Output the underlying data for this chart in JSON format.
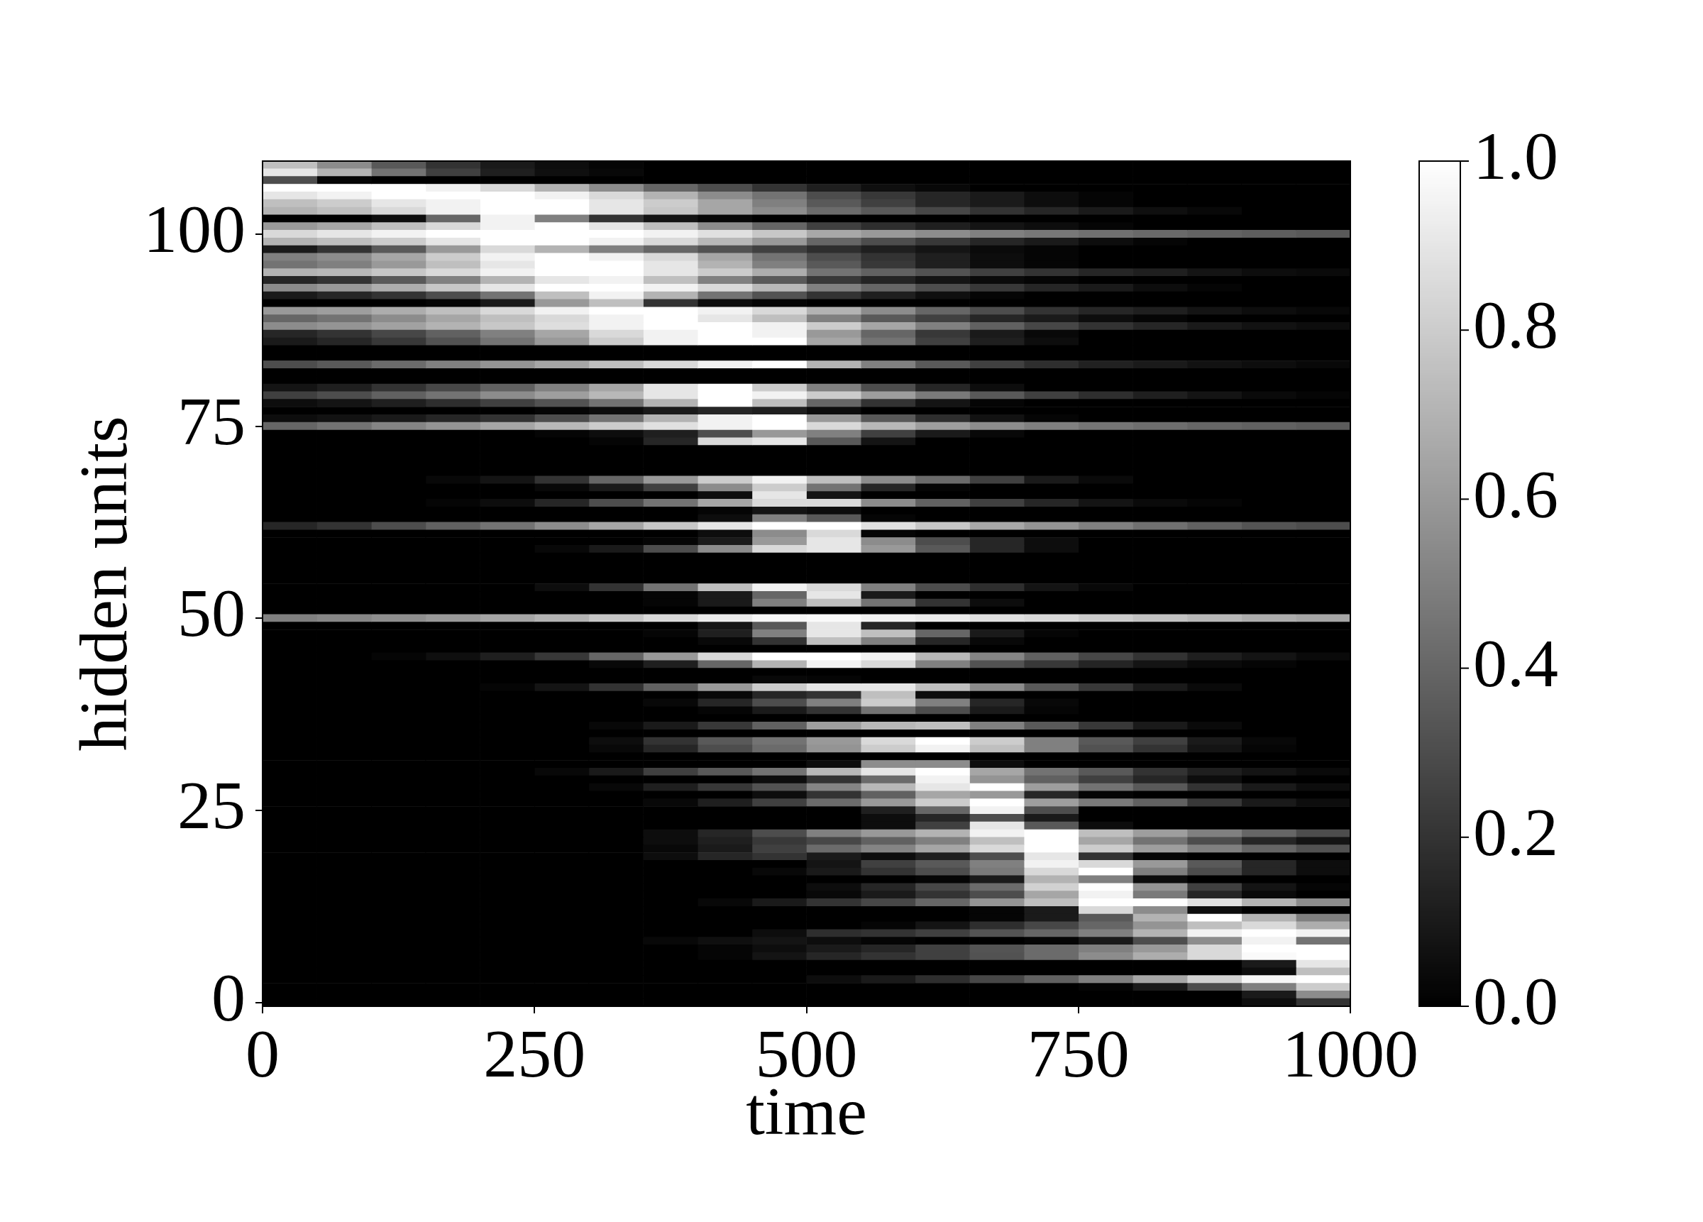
{
  "chart_data": {
    "type": "heatmap",
    "xlabel": "time",
    "ylabel": "hidden units",
    "x": [
      25,
      75,
      125,
      175,
      225,
      275,
      325,
      375,
      425,
      475,
      525,
      575,
      625,
      675,
      725,
      775,
      825,
      875,
      925,
      975
    ],
    "y_categories": [
      null,
      null,
      null,
      null,
      null,
      null,
      null,
      null,
      null,
      "100",
      null,
      null,
      null,
      null,
      null,
      null,
      null,
      null,
      null,
      null,
      null,
      null,
      null,
      null,
      null,
      null,
      null,
      null,
      null,
      null,
      null,
      null,
      null,
      null,
      "75",
      null,
      null,
      null,
      null,
      null,
      null,
      null,
      null,
      null,
      null,
      null,
      null,
      null,
      null,
      null,
      null,
      null,
      null,
      null,
      null,
      null,
      null,
      null,
      null,
      "50",
      null,
      null,
      null,
      null,
      null,
      null,
      null,
      null,
      null,
      null,
      null,
      null,
      null,
      null,
      null,
      null,
      null,
      null,
      null,
      null,
      null,
      null,
      null,
      null,
      "25",
      null,
      null,
      null,
      null,
      null,
      null,
      null,
      null,
      null,
      null,
      null,
      null,
      null,
      null,
      null,
      null,
      null,
      null,
      null,
      null,
      null,
      null,
      null,
      null,
      "0"
    ],
    "cells": [
      [
        0.75,
        0.55,
        0.35,
        0.2,
        0.1,
        0.05,
        0.02,
        0,
        0,
        0,
        0,
        0,
        0,
        0,
        0,
        0,
        0,
        0,
        0,
        0
      ],
      [
        0.9,
        0.7,
        0.45,
        0.25,
        0.12,
        0.06,
        0.03,
        0,
        0,
        0,
        0,
        0,
        0,
        0,
        0,
        0,
        0,
        0,
        0,
        0
      ],
      [
        0.3,
        0.02,
        0,
        0,
        0,
        0,
        0,
        0,
        0,
        0,
        0,
        0,
        0,
        0,
        0,
        0,
        0,
        0,
        0,
        0
      ],
      [
        1,
        1,
        1,
        0.95,
        0.85,
        0.7,
        0.55,
        0.4,
        0.3,
        0.2,
        0.12,
        0.06,
        0.03,
        0,
        0,
        0,
        0,
        0,
        0,
        0
      ],
      [
        0.9,
        0.95,
        1,
        1,
        1,
        0.95,
        0.85,
        0.7,
        0.55,
        0.45,
        0.3,
        0.22,
        0.15,
        0.1,
        0.05,
        0.02,
        0,
        0,
        0,
        0
      ],
      [
        0.75,
        0.8,
        0.9,
        0.95,
        1,
        1,
        0.9,
        0.8,
        0.65,
        0.5,
        0.35,
        0.25,
        0.15,
        0.1,
        0.05,
        0.02,
        0,
        0,
        0,
        0
      ],
      [
        0.7,
        0.75,
        0.85,
        0.95,
        1,
        1,
        0.9,
        0.78,
        0.65,
        0.55,
        0.42,
        0.35,
        0.28,
        0.2,
        0.15,
        0.1,
        0.06,
        0.03,
        0,
        0
      ],
      [
        0,
        0,
        0.05,
        0.4,
        0.95,
        0.5,
        0.2,
        0.08,
        0.03,
        0,
        0,
        0,
        0,
        0,
        0,
        0,
        0,
        0,
        0,
        0
      ],
      [
        0.6,
        0.65,
        0.75,
        0.85,
        0.95,
        1,
        0.9,
        0.75,
        0.55,
        0.4,
        0.25,
        0.18,
        0.12,
        0.08,
        0.05,
        0.02,
        0,
        0,
        0,
        0
      ],
      [
        0.85,
        0.9,
        0.95,
        1,
        1,
        1,
        1,
        0.95,
        0.88,
        0.78,
        0.66,
        0.6,
        0.55,
        0.5,
        0.47,
        0.44,
        0.41,
        0.39,
        0.37,
        0.35
      ],
      [
        0.7,
        0.75,
        0.8,
        0.9,
        1,
        1,
        0.95,
        0.85,
        0.72,
        0.6,
        0.4,
        0.3,
        0.22,
        0.15,
        0.1,
        0.05,
        0.02,
        0,
        0,
        0
      ],
      [
        0.1,
        0.2,
        0.35,
        0.6,
        0.85,
        0.7,
        0.5,
        0.4,
        0.32,
        0.25,
        0.18,
        0.12,
        0.08,
        0.04,
        0.02,
        0,
        0,
        0,
        0,
        0
      ],
      [
        0.5,
        0.55,
        0.65,
        0.8,
        0.95,
        1,
        0.95,
        0.85,
        0.65,
        0.45,
        0.3,
        0.2,
        0.12,
        0.05,
        0.02,
        0,
        0,
        0,
        0,
        0
      ],
      [
        0.45,
        0.5,
        0.6,
        0.75,
        0.9,
        1,
        1,
        0.9,
        0.7,
        0.5,
        0.35,
        0.22,
        0.12,
        0.05,
        0.02,
        0,
        0,
        0,
        0,
        0
      ],
      [
        0.7,
        0.72,
        0.78,
        0.85,
        0.95,
        1,
        1,
        0.9,
        0.8,
        0.68,
        0.45,
        0.38,
        0.32,
        0.25,
        0.2,
        0.15,
        0.12,
        0.08,
        0.05,
        0.04
      ],
      [
        0.15,
        0.2,
        0.35,
        0.5,
        0.7,
        0.9,
        0.95,
        0.75,
        0.5,
        0.35,
        0.22,
        0.14,
        0.08,
        0.04,
        0.02,
        0,
        0,
        0,
        0,
        0
      ],
      [
        0.55,
        0.6,
        0.68,
        0.78,
        0.9,
        1,
        1,
        0.95,
        0.85,
        0.72,
        0.5,
        0.4,
        0.3,
        0.22,
        0.15,
        0.1,
        0.05,
        0.02,
        0,
        0
      ],
      [
        0.1,
        0.15,
        0.2,
        0.3,
        0.45,
        0.75,
        0.95,
        0.7,
        0.45,
        0.32,
        0.2,
        0.12,
        0.06,
        0.02,
        0,
        0,
        0,
        0,
        0,
        0
      ],
      [
        0,
        0,
        0,
        0.02,
        0.1,
        0.6,
        0.75,
        0.2,
        0.05,
        0.02,
        0,
        0,
        0,
        0,
        0,
        0,
        0,
        0,
        0,
        0
      ],
      [
        0.6,
        0.62,
        0.68,
        0.75,
        0.85,
        0.95,
        1,
        1,
        0.95,
        0.85,
        0.7,
        0.55,
        0.4,
        0.3,
        0.2,
        0.15,
        0.12,
        0.08,
        0.05,
        0.03
      ],
      [
        0.4,
        0.45,
        0.55,
        0.65,
        0.75,
        0.85,
        0.95,
        1,
        0.9,
        0.75,
        0.5,
        0.35,
        0.25,
        0.15,
        0.1,
        0.05,
        0.02,
        0,
        0,
        0
      ],
      [
        0.55,
        0.58,
        0.63,
        0.7,
        0.78,
        0.87,
        0.95,
        1,
        1,
        0.95,
        0.8,
        0.65,
        0.5,
        0.38,
        0.28,
        0.2,
        0.15,
        0.1,
        0.07,
        0.05
      ],
      [
        0.15,
        0.2,
        0.28,
        0.38,
        0.5,
        0.65,
        0.85,
        0.95,
        1,
        0.95,
        0.6,
        0.4,
        0.22,
        0.1,
        0.03,
        0,
        0,
        0,
        0,
        0
      ],
      [
        0.1,
        0.15,
        0.22,
        0.32,
        0.45,
        0.6,
        0.8,
        0.95,
        1,
        1,
        0.65,
        0.45,
        0.25,
        0.12,
        0.05,
        0,
        0,
        0,
        0,
        0
      ],
      [
        0,
        0,
        0,
        0,
        0,
        0,
        0,
        0,
        0,
        0,
        0,
        0,
        0,
        0,
        0,
        0,
        0,
        0,
        0,
        0
      ],
      [
        0,
        0,
        0,
        0,
        0,
        0,
        0,
        0,
        0,
        0,
        0,
        0,
        0,
        0,
        0,
        0,
        0,
        0,
        0,
        0
      ],
      [
        0.3,
        0.35,
        0.42,
        0.5,
        0.58,
        0.65,
        0.75,
        0.85,
        0.95,
        1,
        0.7,
        0.5,
        0.35,
        0.25,
        0.18,
        0.13,
        0.1,
        0.07,
        0.05,
        0.03
      ],
      [
        0,
        0,
        0,
        0,
        0,
        0,
        0,
        0,
        0,
        0,
        0,
        0,
        0,
        0,
        0,
        0,
        0,
        0,
        0,
        0
      ],
      [
        0,
        0,
        0,
        0,
        0,
        0,
        0,
        0,
        0,
        0,
        0,
        0,
        0,
        0,
        0,
        0,
        0,
        0,
        0,
        0
      ],
      [
        0.08,
        0.12,
        0.2,
        0.28,
        0.38,
        0.5,
        0.65,
        0.9,
        1,
        0.8,
        0.5,
        0.3,
        0.15,
        0.05,
        0,
        0,
        0,
        0,
        0,
        0
      ],
      [
        0.25,
        0.3,
        0.38,
        0.45,
        0.55,
        0.62,
        0.72,
        0.9,
        1,
        0.95,
        0.8,
        0.62,
        0.48,
        0.35,
        0.25,
        0.18,
        0.12,
        0.08,
        0.04,
        0.02
      ],
      [
        0.05,
        0.08,
        0.12,
        0.18,
        0.25,
        0.32,
        0.45,
        0.7,
        1,
        0.75,
        0.4,
        0.2,
        0.08,
        0.02,
        0,
        0,
        0,
        0,
        0,
        0
      ],
      [
        0,
        0,
        0,
        0,
        0,
        0.02,
        0.05,
        0.1,
        0.15,
        0.12,
        0.05,
        0,
        0,
        0,
        0,
        0,
        0,
        0,
        0,
        0
      ],
      [
        0.05,
        0.07,
        0.1,
        0.15,
        0.2,
        0.3,
        0.45,
        0.7,
        0.95,
        1,
        0.6,
        0.35,
        0.18,
        0.07,
        0.02,
        0,
        0,
        0,
        0,
        0
      ],
      [
        0.4,
        0.45,
        0.52,
        0.58,
        0.65,
        0.72,
        0.8,
        0.88,
        0.95,
        1,
        0.85,
        0.72,
        0.62,
        0.55,
        0.5,
        0.46,
        0.43,
        0.4,
        0.38,
        0.36
      ],
      [
        0,
        0,
        0,
        0,
        0,
        0.02,
        0.05,
        0.12,
        0.3,
        0.6,
        0.5,
        0.25,
        0.1,
        0.03,
        0,
        0,
        0,
        0,
        0,
        0
      ],
      [
        0,
        0,
        0,
        0,
        0,
        0,
        0.02,
        0.15,
        0.85,
        0.9,
        0.35,
        0.08,
        0,
        0,
        0,
        0,
        0,
        0,
        0,
        0
      ],
      [
        0,
        0,
        0,
        0,
        0,
        0,
        0,
        0,
        0,
        0,
        0,
        0,
        0,
        0,
        0,
        0,
        0,
        0,
        0,
        0
      ],
      [
        0,
        0,
        0,
        0,
        0,
        0,
        0,
        0,
        0,
        0,
        0,
        0,
        0,
        0,
        0,
        0,
        0,
        0,
        0,
        0
      ],
      [
        0,
        0,
        0,
        0,
        0,
        0,
        0,
        0,
        0,
        0,
        0,
        0,
        0,
        0,
        0,
        0,
        0,
        0,
        0,
        0
      ],
      [
        0,
        0,
        0,
        0,
        0,
        0,
        0,
        0,
        0,
        0,
        0,
        0,
        0,
        0,
        0,
        0,
        0,
        0,
        0,
        0
      ],
      [
        0,
        0,
        0,
        0.03,
        0.08,
        0.2,
        0.4,
        0.6,
        0.8,
        0.95,
        0.75,
        0.55,
        0.42,
        0.25,
        0.1,
        0.04,
        0,
        0,
        0,
        0
      ],
      [
        0,
        0,
        0,
        0,
        0,
        0.03,
        0.1,
        0.25,
        0.55,
        0.8,
        0.45,
        0.15,
        0.02,
        0,
        0,
        0,
        0,
        0,
        0,
        0
      ],
      [
        0,
        0,
        0,
        0,
        0,
        0,
        0,
        0,
        0.05,
        0.9,
        0.08,
        0,
        0,
        0,
        0,
        0,
        0,
        0,
        0,
        0
      ],
      [
        0,
        0,
        0,
        0.02,
        0.05,
        0.15,
        0.3,
        0.45,
        0.65,
        0.85,
        0.85,
        0.55,
        0.38,
        0.25,
        0.15,
        0.08,
        0.04,
        0.02,
        0,
        0
      ],
      [
        0,
        0,
        0,
        0,
        0,
        0,
        0,
        0,
        0.02,
        0.08,
        0.05,
        0,
        0,
        0,
        0,
        0,
        0,
        0,
        0,
        0
      ],
      [
        0,
        0,
        0,
        0,
        0,
        0,
        0,
        0,
        0.05,
        0.5,
        0.35,
        0.02,
        0,
        0,
        0,
        0,
        0,
        0,
        0,
        0
      ],
      [
        0.15,
        0.2,
        0.3,
        0.38,
        0.45,
        0.55,
        0.65,
        0.78,
        0.9,
        1,
        1,
        0.88,
        0.78,
        0.66,
        0.58,
        0.5,
        0.44,
        0.38,
        0.33,
        0.3
      ],
      [
        0,
        0,
        0,
        0,
        0,
        0,
        0,
        0,
        0.05,
        0.55,
        0.85,
        0.02,
        0,
        0,
        0,
        0,
        0,
        0,
        0,
        0
      ],
      [
        0,
        0,
        0,
        0,
        0,
        0,
        0,
        0.02,
        0.1,
        0.6,
        0.9,
        0.55,
        0.3,
        0.15,
        0.05,
        0,
        0,
        0,
        0,
        0
      ],
      [
        0,
        0,
        0,
        0,
        0,
        0.03,
        0.1,
        0.3,
        0.55,
        0.85,
        0.9,
        0.6,
        0.35,
        0.15,
        0.05,
        0,
        0,
        0,
        0,
        0
      ],
      [
        0,
        0,
        0,
        0,
        0,
        0,
        0,
        0,
        0,
        0,
        0,
        0,
        0,
        0,
        0,
        0,
        0,
        0,
        0,
        0
      ],
      [
        0,
        0,
        0,
        0,
        0,
        0,
        0,
        0,
        0,
        0,
        0,
        0,
        0,
        0,
        0,
        0,
        0,
        0,
        0,
        0
      ],
      [
        0,
        0,
        0,
        0,
        0,
        0,
        0,
        0,
        0,
        0,
        0,
        0,
        0,
        0,
        0,
        0,
        0,
        0,
        0,
        0
      ],
      [
        0,
        0,
        0,
        0,
        0,
        0,
        0,
        0,
        0,
        0,
        0,
        0,
        0,
        0,
        0,
        0,
        0,
        0,
        0,
        0
      ],
      [
        0,
        0,
        0,
        0,
        0,
        0.05,
        0.2,
        0.45,
        0.75,
        0.95,
        0.85,
        0.5,
        0.3,
        0.18,
        0.08,
        0.03,
        0,
        0,
        0,
        0
      ],
      [
        0,
        0,
        0,
        0,
        0,
        0,
        0,
        0.02,
        0.1,
        0.4,
        0.9,
        0.1,
        0,
        0,
        0,
        0,
        0,
        0,
        0,
        0
      ],
      [
        0,
        0,
        0,
        0,
        0,
        0,
        0,
        0.02,
        0.1,
        0.5,
        0.75,
        0.45,
        0.2,
        0.05,
        0,
        0,
        0,
        0,
        0,
        0
      ],
      [
        0,
        0,
        0,
        0,
        0,
        0,
        0,
        0,
        0,
        0,
        0,
        0,
        0,
        0,
        0,
        0,
        0,
        0,
        0,
        0
      ],
      [
        0.5,
        0.53,
        0.56,
        0.6,
        0.65,
        0.7,
        0.78,
        0.85,
        0.92,
        0.97,
        0.98,
        0.95,
        0.92,
        0.88,
        0.85,
        0.8,
        0.76,
        0.72,
        0.68,
        0.65
      ],
      [
        0,
        0,
        0,
        0,
        0,
        0,
        0,
        0,
        0.08,
        0.35,
        0.9,
        0.15,
        0,
        0,
        0,
        0,
        0,
        0,
        0,
        0
      ],
      [
        0,
        0,
        0,
        0,
        0,
        0,
        0,
        0.02,
        0.12,
        0.5,
        0.9,
        0.75,
        0.4,
        0.1,
        0.02,
        0,
        0,
        0,
        0,
        0
      ],
      [
        0,
        0,
        0,
        0,
        0,
        0,
        0,
        0,
        0.03,
        0.2,
        0.75,
        0.5,
        0.15,
        0.03,
        0,
        0,
        0,
        0,
        0,
        0
      ],
      [
        0,
        0,
        0,
        0,
        0,
        0,
        0,
        0,
        0,
        0,
        0,
        0,
        0,
        0,
        0,
        0,
        0,
        0,
        0,
        0
      ],
      [
        0,
        0,
        0.02,
        0.06,
        0.12,
        0.22,
        0.4,
        0.6,
        0.85,
        1,
        1,
        0.95,
        0.72,
        0.52,
        0.38,
        0.28,
        0.2,
        0.12,
        0.08,
        0.04
      ],
      [
        0,
        0,
        0,
        0,
        0,
        0,
        0.03,
        0.12,
        0.4,
        0.7,
        0.95,
        0.85,
        0.5,
        0.32,
        0.22,
        0.14,
        0.08,
        0.04,
        0.02,
        0
      ],
      [
        0,
        0,
        0,
        0,
        0,
        0,
        0,
        0,
        0,
        0,
        0,
        0,
        0,
        0,
        0,
        0,
        0,
        0,
        0,
        0
      ],
      [
        0,
        0,
        0,
        0,
        0,
        0,
        0,
        0,
        0,
        0.03,
        0.02,
        0,
        0,
        0,
        0,
        0,
        0,
        0,
        0,
        0
      ],
      [
        0,
        0,
        0,
        0,
        0.02,
        0.08,
        0.2,
        0.38,
        0.6,
        0.8,
        0.9,
        0.9,
        0.75,
        0.55,
        0.35,
        0.22,
        0.1,
        0.04,
        0,
        0
      ],
      [
        0,
        0,
        0,
        0,
        0,
        0,
        0,
        0,
        0.03,
        0.15,
        0.2,
        0.75,
        0.05,
        0,
        0,
        0,
        0,
        0,
        0,
        0
      ],
      [
        0,
        0,
        0,
        0,
        0,
        0,
        0,
        0.03,
        0.15,
        0.3,
        0.5,
        0.8,
        0.5,
        0.15,
        0.03,
        0,
        0,
        0,
        0,
        0
      ],
      [
        0,
        0,
        0,
        0,
        0,
        0,
        0,
        0,
        0.02,
        0.1,
        0.2,
        0.45,
        0.3,
        0.1,
        0.02,
        0,
        0,
        0,
        0,
        0
      ],
      [
        0,
        0,
        0,
        0,
        0,
        0,
        0,
        0,
        0,
        0,
        0,
        0,
        0,
        0,
        0,
        0,
        0,
        0,
        0,
        0
      ],
      [
        0,
        0,
        0,
        0,
        0,
        0,
        0.03,
        0.1,
        0.22,
        0.38,
        0.62,
        0.72,
        0.75,
        0.5,
        0.35,
        0.22,
        0.1,
        0.04,
        0,
        0
      ],
      [
        0,
        0,
        0,
        0,
        0,
        0,
        0,
        0,
        0,
        0,
        0,
        0,
        0,
        0,
        0,
        0,
        0,
        0,
        0,
        0
      ],
      [
        0,
        0,
        0,
        0,
        0,
        0,
        0.05,
        0.2,
        0.35,
        0.45,
        0.6,
        0.85,
        1,
        0.8,
        0.5,
        0.35,
        0.25,
        0.1,
        0.03,
        0
      ],
      [
        0,
        0,
        0,
        0,
        0,
        0,
        0.03,
        0.15,
        0.3,
        0.42,
        0.58,
        0.8,
        0.95,
        0.75,
        0.5,
        0.32,
        0.2,
        0.08,
        0.02,
        0
      ],
      [
        0,
        0,
        0,
        0,
        0,
        0,
        0,
        0,
        0,
        0,
        0,
        0,
        0,
        0,
        0,
        0,
        0,
        0,
        0,
        0
      ],
      [
        0,
        0,
        0,
        0,
        0,
        0,
        0,
        0,
        0,
        0,
        0.05,
        0.55,
        0.55,
        0.05,
        0,
        0,
        0,
        0,
        0,
        0
      ],
      [
        0,
        0,
        0,
        0,
        0,
        0.03,
        0.1,
        0.25,
        0.35,
        0.45,
        0.72,
        0.9,
        1,
        0.65,
        0.45,
        0.35,
        0.2,
        0.12,
        0.08,
        0.04
      ],
      [
        0,
        0,
        0,
        0,
        0,
        0,
        0,
        0,
        0,
        0.05,
        0.2,
        0.42,
        0.95,
        0.58,
        0.38,
        0.25,
        0.15,
        0.05,
        0,
        0
      ],
      [
        0,
        0,
        0,
        0,
        0,
        0,
        0.03,
        0.12,
        0.22,
        0.32,
        0.52,
        0.72,
        0.9,
        1,
        0.62,
        0.45,
        0.35,
        0.2,
        0.1,
        0.05
      ],
      [
        0,
        0,
        0,
        0,
        0,
        0,
        0,
        0,
        0,
        0.05,
        0.2,
        0.38,
        0.65,
        0.6,
        0.15,
        0.02,
        0,
        0,
        0,
        0
      ],
      [
        0,
        0,
        0,
        0,
        0,
        0,
        0,
        0.03,
        0.12,
        0.25,
        0.42,
        0.6,
        0.8,
        1,
        0.62,
        0.48,
        0.38,
        0.22,
        0.1,
        0.05
      ],
      [
        0,
        0,
        0,
        0,
        0,
        0,
        0,
        0,
        0,
        0,
        0,
        0.12,
        0.4,
        0.95,
        0.3,
        0,
        0,
        0,
        0,
        0
      ],
      [
        0,
        0,
        0,
        0,
        0,
        0,
        0,
        0,
        0,
        0,
        0,
        0.05,
        0.15,
        0.3,
        0.1,
        0,
        0,
        0,
        0,
        0
      ],
      [
        0,
        0,
        0,
        0,
        0,
        0,
        0,
        0,
        0,
        0,
        0,
        0.05,
        0.25,
        0.9,
        0.35,
        0.05,
        0,
        0,
        0,
        0
      ],
      [
        0,
        0,
        0,
        0,
        0,
        0,
        0,
        0.05,
        0.15,
        0.3,
        0.5,
        0.6,
        0.7,
        0.95,
        1,
        0.75,
        0.62,
        0.5,
        0.4,
        0.3
      ],
      [
        0,
        0,
        0,
        0,
        0,
        0,
        0,
        0.05,
        0.12,
        0.22,
        0.28,
        0.38,
        0.5,
        0.75,
        1,
        0.65,
        0.45,
        0.3,
        0.15,
        0.08
      ],
      [
        0,
        0,
        0,
        0,
        0,
        0,
        0,
        0.03,
        0.1,
        0.25,
        0.42,
        0.52,
        0.65,
        0.85,
        1,
        0.8,
        0.62,
        0.5,
        0.4,
        0.32
      ],
      [
        0,
        0,
        0,
        0,
        0,
        0,
        0,
        0.05,
        0.15,
        0.2,
        0.1,
        0.05,
        0.12,
        0.3,
        0.9,
        0.2,
        0.02,
        0,
        0,
        0
      ],
      [
        0,
        0,
        0,
        0,
        0,
        0,
        0,
        0,
        0,
        0,
        0.08,
        0.25,
        0.35,
        0.5,
        0.95,
        0.85,
        0.6,
        0.35,
        0.15,
        0.05
      ],
      [
        0,
        0,
        0,
        0,
        0,
        0,
        0,
        0,
        0,
        0.03,
        0.1,
        0.2,
        0.3,
        0.48,
        0.85,
        1,
        0.5,
        0.3,
        0.15,
        0.05
      ],
      [
        0,
        0,
        0,
        0,
        0,
        0,
        0,
        0,
        0,
        0,
        0,
        0,
        0.02,
        0.1,
        0.7,
        0.5,
        0.05,
        0,
        0,
        0
      ],
      [
        0,
        0,
        0,
        0,
        0,
        0,
        0,
        0,
        0,
        0,
        0.05,
        0.15,
        0.28,
        0.42,
        0.82,
        1,
        0.58,
        0.25,
        0.08,
        0.02
      ],
      [
        0,
        0,
        0,
        0,
        0,
        0,
        0,
        0,
        0,
        0,
        0.03,
        0.1,
        0.2,
        0.3,
        0.65,
        0.95,
        0.48,
        0.15,
        0.04,
        0
      ],
      [
        0,
        0,
        0,
        0,
        0,
        0,
        0,
        0,
        0.03,
        0.1,
        0.2,
        0.28,
        0.4,
        0.58,
        0.75,
        1,
        1,
        0.88,
        0.7,
        0.55
      ],
      [
        0,
        0,
        0,
        0,
        0,
        0,
        0,
        0,
        0,
        0,
        0,
        0,
        0,
        0.02,
        0.1,
        0.85,
        0.55,
        0.05,
        0,
        0
      ],
      [
        0,
        0,
        0,
        0,
        0,
        0,
        0,
        0,
        0,
        0,
        0,
        0,
        0,
        0.02,
        0.1,
        0.35,
        0.7,
        1,
        0.7,
        0.5
      ],
      [
        0,
        0,
        0,
        0,
        0,
        0,
        0,
        0,
        0,
        0,
        0,
        0.02,
        0.08,
        0.18,
        0.28,
        0.4,
        0.58,
        0.75,
        0.85,
        0.68
      ],
      [
        0,
        0,
        0,
        0,
        0,
        0,
        0,
        0,
        0,
        0.05,
        0.18,
        0.2,
        0.25,
        0.33,
        0.4,
        0.5,
        0.7,
        0.95,
        1,
        0.95
      ],
      [
        0,
        0,
        0,
        0,
        0,
        0,
        0,
        0.03,
        0.06,
        0.08,
        0.05,
        0.02,
        0,
        0,
        0.02,
        0.1,
        0.3,
        0.55,
        0.95,
        0.45
      ],
      [
        0,
        0,
        0,
        0,
        0,
        0,
        0,
        0,
        0.02,
        0.05,
        0.1,
        0.15,
        0.25,
        0.33,
        0.42,
        0.5,
        0.6,
        0.85,
        1,
        1
      ],
      [
        0,
        0,
        0,
        0,
        0,
        0,
        0,
        0,
        0.02,
        0.08,
        0.15,
        0.2,
        0.25,
        0.32,
        0.42,
        0.55,
        0.68,
        0.85,
        0.98,
        1
      ],
      [
        0,
        0,
        0,
        0,
        0,
        0,
        0,
        0,
        0,
        0,
        0,
        0,
        0,
        0,
        0,
        0,
        0,
        0,
        0.1,
        0.9
      ],
      [
        0,
        0,
        0,
        0,
        0,
        0,
        0,
        0,
        0,
        0,
        0,
        0,
        0,
        0,
        0,
        0,
        0,
        0,
        0.05,
        0.75
      ],
      [
        0,
        0,
        0,
        0,
        0,
        0,
        0,
        0,
        0,
        0,
        0.05,
        0.1,
        0.18,
        0.28,
        0.38,
        0.5,
        0.65,
        0.82,
        0.97,
        1
      ],
      [
        0,
        0,
        0,
        0,
        0,
        0,
        0,
        0,
        0,
        0,
        0,
        0,
        0,
        0,
        0,
        0.02,
        0.1,
        0.3,
        0.5,
        0.8
      ],
      [
        0,
        0,
        0,
        0,
        0,
        0,
        0,
        0,
        0,
        0,
        0,
        0,
        0,
        0,
        0,
        0,
        0,
        0,
        0.1,
        0.55
      ],
      [
        0,
        0,
        0,
        0,
        0,
        0,
        0,
        0,
        0,
        0,
        0,
        0,
        0,
        0,
        0,
        0,
        0,
        0,
        0.05,
        0.2
      ]
    ],
    "xlim": [
      0,
      1000
    ],
    "xticks": [
      0,
      250,
      500,
      750,
      1000
    ],
    "clim": [
      0,
      1
    ],
    "cticks": [
      {
        "value": 0,
        "label": "0.0"
      },
      0.2,
      0.4,
      0.6,
      0.8,
      {
        "value": 1,
        "label": "1.0"
      }
    ]
  }
}
